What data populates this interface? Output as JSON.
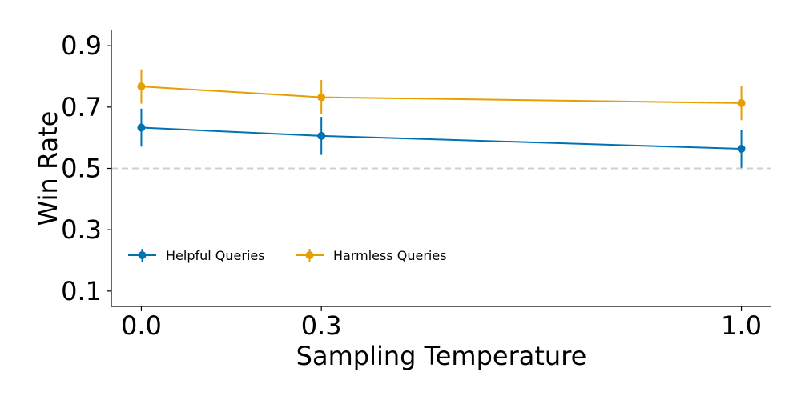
{
  "chart_data": {
    "type": "line",
    "x": [
      0.0,
      0.3,
      1.0
    ],
    "x_tick_labels": [
      "0.0",
      "0.3",
      "1.0"
    ],
    "y_ticks": [
      0.1,
      0.3,
      0.5,
      0.7,
      0.9
    ],
    "y_tick_labels": [
      "0.1",
      "0.3",
      "0.5",
      "0.7",
      "0.9"
    ],
    "xlabel": "Sampling Temperature",
    "ylabel": "Win Rate",
    "xlim": [
      -0.05,
      1.05
    ],
    "ylim": [
      0.05,
      0.95
    ],
    "reference_line": {
      "y": 0.5,
      "style": "dashed",
      "color": "#d0d0d0"
    },
    "legend_position": "lower-left",
    "grid": false,
    "series": [
      {
        "name": "Helpful Queries",
        "color": "#0072b2",
        "values": [
          0.633,
          0.606,
          0.564
        ],
        "error": [
          0.062,
          0.062,
          0.062
        ]
      },
      {
        "name": "Harmless Queries",
        "color": "#e69f00",
        "values": [
          0.767,
          0.732,
          0.713
        ],
        "error": [
          0.056,
          0.056,
          0.056
        ]
      }
    ]
  }
}
